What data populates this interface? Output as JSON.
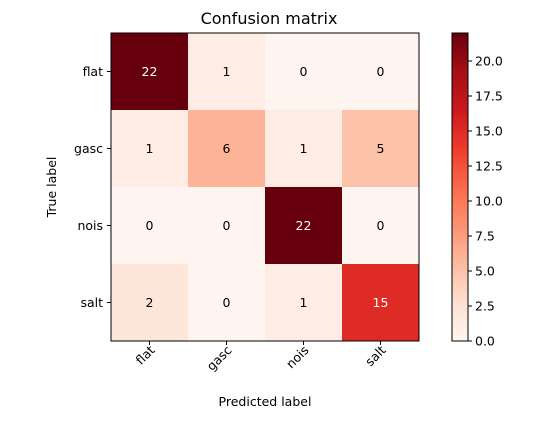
{
  "chart_data": {
    "type": "heatmap",
    "title": "Confusion matrix",
    "xlabel": "Predicted label",
    "ylabel": "True label",
    "x_categories": [
      "flat",
      "gasc",
      "nois",
      "salt"
    ],
    "y_categories": [
      "flat",
      "gasc",
      "nois",
      "salt"
    ],
    "values": [
      [
        22,
        1,
        0,
        0
      ],
      [
        1,
        6,
        1,
        5
      ],
      [
        0,
        0,
        22,
        0
      ],
      [
        2,
        0,
        1,
        15
      ]
    ],
    "colormap": "Reds",
    "colorbar": {
      "range": [
        0,
        22
      ],
      "ticks": [
        0.0,
        2.5,
        5.0,
        7.5,
        10.0,
        12.5,
        15.0,
        17.5,
        20.0
      ],
      "tick_labels": [
        "0.0",
        "2.5",
        "5.0",
        "7.5",
        "10.0",
        "12.5",
        "15.0",
        "17.5",
        "20.0"
      ]
    },
    "grid": false
  }
}
